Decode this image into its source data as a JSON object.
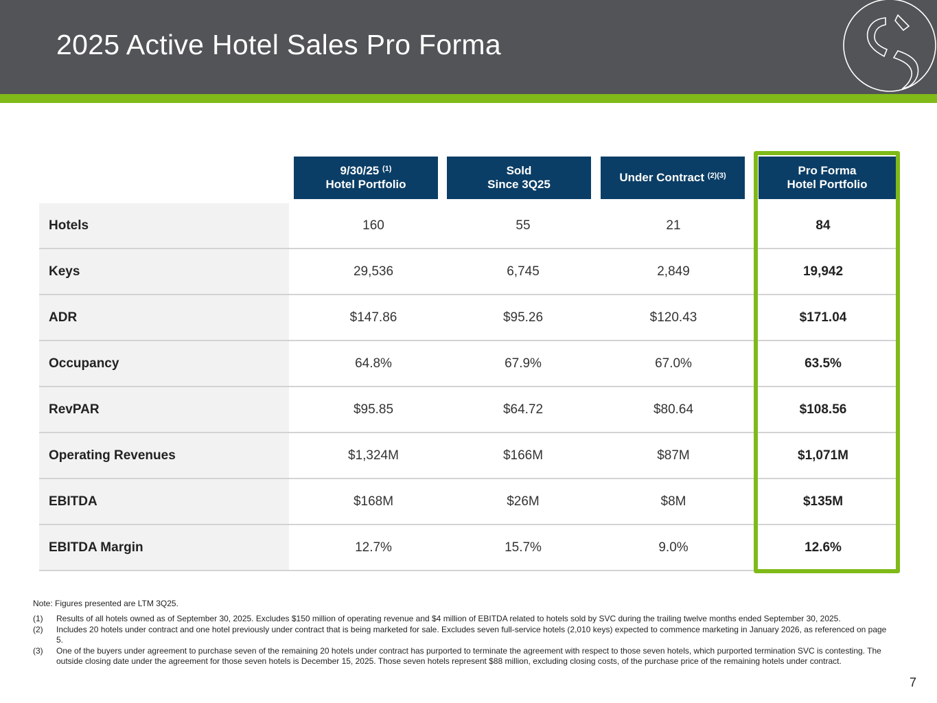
{
  "page": {
    "title": "2025 Active Hotel Sales Pro Forma",
    "page_number": "7"
  },
  "colors": {
    "header": "#525457",
    "accent_green": "#7fba18",
    "column_header": "#0b3e66"
  },
  "table": {
    "columns": [
      {
        "line1": "9/30/25",
        "line1_sup": "(1)",
        "line2": "Hotel Portfolio"
      },
      {
        "line1": "Sold",
        "line1_sup": "",
        "line2": "Since 3Q25"
      },
      {
        "line1": "Under Contract",
        "line1_sup": "(2)(3)",
        "line2": ""
      },
      {
        "line1": "Pro Forma",
        "line1_sup": "",
        "line2": "Hotel Portfolio"
      }
    ],
    "rows": [
      {
        "label": "Hotels",
        "values": [
          "160",
          "55",
          "21",
          "84"
        ]
      },
      {
        "label": "Keys",
        "values": [
          "29,536",
          "6,745",
          "2,849",
          "19,942"
        ]
      },
      {
        "label": "ADR",
        "values": [
          "$147.86",
          "$95.26",
          "$120.43",
          "$171.04"
        ]
      },
      {
        "label": "Occupancy",
        "values": [
          "64.8%",
          "67.9%",
          "67.0%",
          "63.5%"
        ]
      },
      {
        "label": "RevPAR",
        "values": [
          "$95.85",
          "$64.72",
          "$80.64",
          "$108.56"
        ]
      },
      {
        "label": "Operating Revenues",
        "values": [
          "$1,324M",
          "$166M",
          "$87M",
          "$1,071M"
        ]
      },
      {
        "label": "EBITDA",
        "values": [
          "$168M",
          "$26M",
          "$8M",
          "$135M"
        ]
      },
      {
        "label": "EBITDA Margin",
        "values": [
          "12.7%",
          "15.7%",
          "9.0%",
          "12.6%"
        ]
      }
    ]
  },
  "notes": {
    "main": "Note:  Figures presented are LTM 3Q25.",
    "footnotes": [
      {
        "num": "(1)",
        "text": "Results of all hotels owned as of September 30, 2025.  Excludes $150 million of operating revenue and $4 million of EBITDA related to hotels sold by SVC during the trailing twelve months ended September 30, 2025."
      },
      {
        "num": "(2)",
        "text": "Includes 20 hotels under contract and one hotel previously under contract that is being marketed for sale. Excludes seven full-service hotels (2,010 keys) expected to commence marketing in January 2026, as referenced on page 5."
      },
      {
        "num": "(3)",
        "text": "One of the buyers under agreement to purchase seven of the remaining 20 hotels under contract has purported to terminate the agreement with respect to those seven hotels, which purported termination SVC is contesting. The outside closing date under the agreement for those seven hotels is December 15, 2025. Those seven hotels represent $88 million, excluding closing costs, of the purchase price of the remaining hotels under contract."
      }
    ]
  }
}
